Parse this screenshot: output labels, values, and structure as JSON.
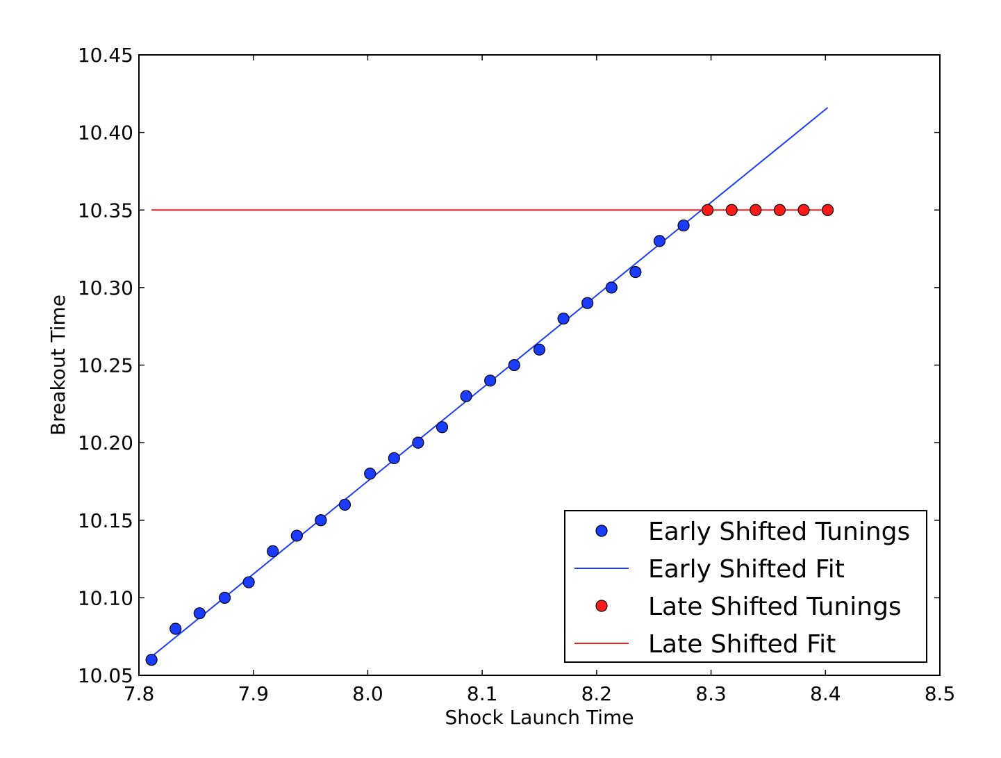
{
  "chart_data": {
    "type": "scatter",
    "xlabel": "Shock Launch Time",
    "ylabel": "Breakout Time",
    "xlim": [
      7.8,
      8.5
    ],
    "ylim": [
      10.05,
      10.45
    ],
    "xticks": [
      "7.8",
      "7.9",
      "8.0",
      "8.1",
      "8.2",
      "8.3",
      "8.4",
      "8.5"
    ],
    "yticks": [
      "10.05",
      "10.10",
      "10.15",
      "10.20",
      "10.25",
      "10.30",
      "10.35",
      "10.40",
      "10.45"
    ],
    "legend_position": "lower-right",
    "grid": false,
    "series": [
      {
        "name": "Early Shifted Tunings",
        "kind": "markers",
        "color": "#1a3cff",
        "x": [
          7.811,
          7.832,
          7.853,
          7.875,
          7.896,
          7.917,
          7.938,
          7.959,
          7.98,
          8.002,
          8.023,
          8.044,
          8.065,
          8.086,
          8.107,
          8.128,
          8.15,
          8.171,
          8.192,
          8.213,
          8.234,
          8.255,
          8.276
        ],
        "y": [
          10.06,
          10.08,
          10.09,
          10.1,
          10.11,
          10.13,
          10.14,
          10.15,
          10.16,
          10.18,
          10.19,
          10.2,
          10.21,
          10.23,
          10.24,
          10.25,
          10.26,
          10.28,
          10.29,
          10.3,
          10.31,
          10.33,
          10.34
        ]
      },
      {
        "name": "Early Shifted Fit",
        "kind": "line",
        "color": "#1a3cff",
        "x": [
          7.811,
          8.402
        ],
        "y": [
          10.062,
          10.416
        ]
      },
      {
        "name": "Late Shifted Tunings",
        "kind": "markers",
        "color": "#ff1a1a",
        "x": [
          8.297,
          8.318,
          8.339,
          8.36,
          8.381,
          8.402
        ],
        "y": [
          10.35,
          10.35,
          10.35,
          10.35,
          10.35,
          10.35
        ]
      },
      {
        "name": "Late Shifted Fit",
        "kind": "line",
        "color": "#ff1a1a",
        "x": [
          7.811,
          8.402
        ],
        "y": [
          10.35,
          10.35
        ]
      }
    ]
  }
}
